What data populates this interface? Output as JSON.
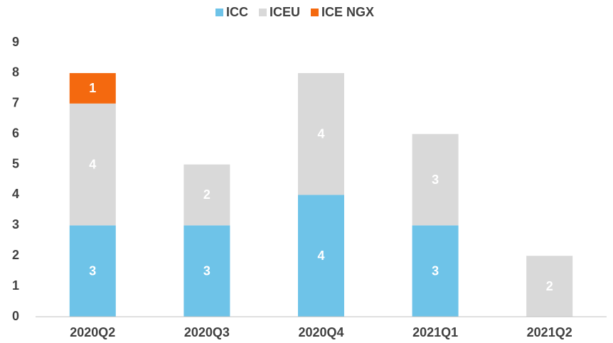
{
  "chart_data": {
    "type": "stacked_bar",
    "categories": [
      "2020Q2",
      "2020Q3",
      "2020Q4",
      "2021Q1",
      "2021Q2"
    ],
    "series": [
      {
        "name": "ICC",
        "color": "#6ec3e8",
        "values": [
          3,
          3,
          4,
          3,
          null
        ]
      },
      {
        "name": "ICEU",
        "color": "#d9d9d9",
        "values": [
          4,
          2,
          4,
          3,
          2
        ]
      },
      {
        "name": "ICE NGX",
        "color": "#f4690f",
        "values": [
          1,
          null,
          null,
          null,
          null
        ]
      }
    ],
    "ylim": [
      0,
      9
    ],
    "yticks": [
      0,
      1,
      2,
      3,
      4,
      5,
      6,
      7,
      8,
      9
    ],
    "grid": false,
    "legend": "top"
  }
}
